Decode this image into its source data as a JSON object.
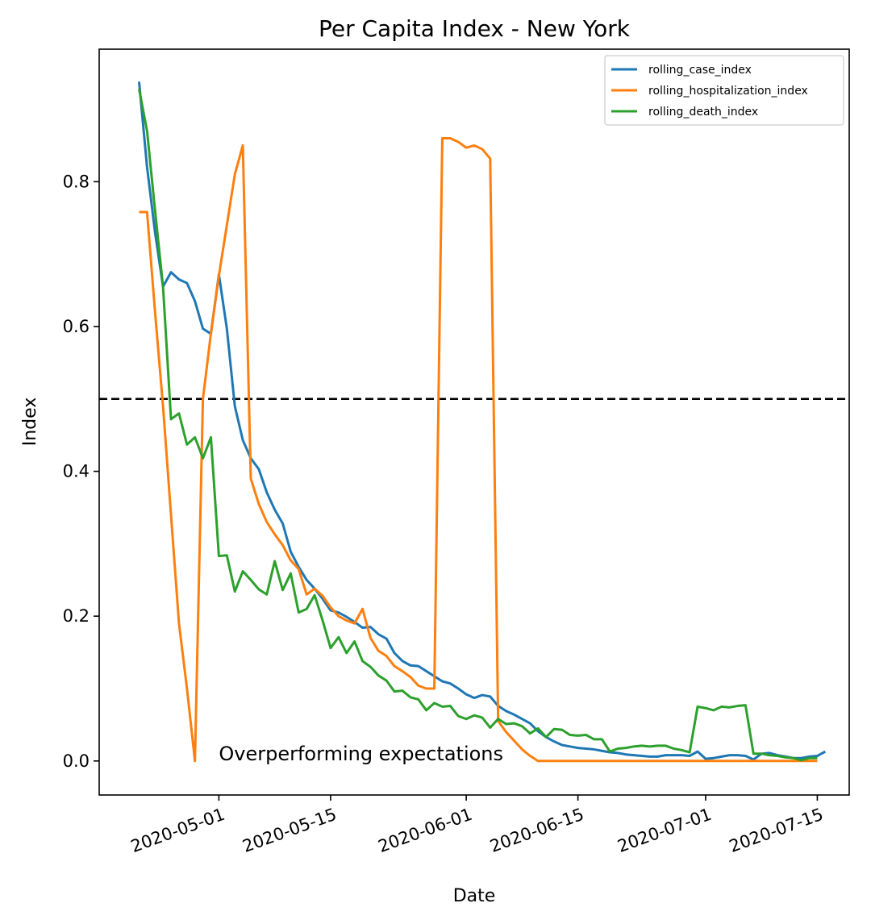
{
  "chart_data": {
    "type": "line",
    "title": "Per Capita Index - New York",
    "xlabel": "Date",
    "ylabel": "Index",
    "x_start_date": "2020-04-21",
    "xlim": [
      "2020-04-16",
      "2020-07-19"
    ],
    "ylim": [
      -0.047,
      0.983
    ],
    "x_ticks": [
      "2020-05-01",
      "2020-05-15",
      "2020-06-01",
      "2020-06-15",
      "2020-07-01",
      "2020-07-15"
    ],
    "y_ticks": [
      "0.0",
      "0.2",
      "0.4",
      "0.6",
      "0.8"
    ],
    "y_tick_values": [
      0.0,
      0.2,
      0.4,
      0.6,
      0.8
    ],
    "grid": false,
    "legend_position": "top-right",
    "reference_line": {
      "y": 0.5,
      "style": "dashed",
      "color": "#000000"
    },
    "annotation": {
      "text": "Overperforming expectations",
      "x": "2020-05-01",
      "y": 0.01
    },
    "series": [
      {
        "name": "rolling_case_index",
        "color": "#1f77b4",
        "values": [
          0.938,
          0.82,
          0.73,
          0.655,
          0.675,
          0.665,
          0.66,
          0.635,
          0.597,
          0.59,
          0.672,
          0.597,
          0.49,
          0.443,
          0.418,
          0.403,
          0.371,
          0.347,
          0.328,
          0.289,
          0.268,
          0.25,
          0.238,
          0.224,
          0.208,
          0.205,
          0.199,
          0.192,
          0.184,
          0.185,
          0.175,
          0.169,
          0.149,
          0.138,
          0.132,
          0.131,
          0.124,
          0.117,
          0.11,
          0.107,
          0.1,
          0.092,
          0.087,
          0.091,
          0.089,
          0.076,
          0.069,
          0.064,
          0.058,
          0.052,
          0.041,
          0.033,
          0.027,
          0.022,
          0.02,
          0.018,
          0.017,
          0.016,
          0.014,
          0.012,
          0.011,
          0.009,
          0.008,
          0.007,
          0.006,
          0.006,
          0.008,
          0.008,
          0.008,
          0.007,
          0.013,
          0.003,
          0.004,
          0.006,
          0.008,
          0.008,
          0.007,
          0.002,
          0.01,
          0.011,
          0.008,
          0.006,
          0.004,
          0.004,
          0.006,
          0.007,
          0.013
        ]
      },
      {
        "name": "rolling_hospitalization_index",
        "color": "#ff7f0e",
        "values": [
          0.758,
          0.758,
          0.62,
          0.49,
          0.34,
          0.19,
          0.1,
          0.0,
          0.5,
          0.59,
          0.67,
          0.74,
          0.81,
          0.85,
          0.39,
          0.355,
          0.33,
          0.313,
          0.298,
          0.277,
          0.265,
          0.23,
          0.238,
          0.228,
          0.212,
          0.2,
          0.194,
          0.19,
          0.21,
          0.17,
          0.152,
          0.145,
          0.131,
          0.124,
          0.116,
          0.104,
          0.1,
          0.1,
          0.86,
          0.86,
          0.855,
          0.847,
          0.85,
          0.845,
          0.832,
          0.055,
          0.04,
          0.028,
          0.016,
          0.007,
          0.0,
          0.0,
          0.0,
          0.0,
          0.0,
          0.0,
          0.0,
          0.0,
          0.0,
          0.0,
          0.0,
          0.0,
          0.0,
          0.0,
          0.0,
          0.0,
          0.0,
          0.0,
          0.0,
          0.0,
          0.0,
          0.0,
          0.0,
          0.0,
          0.0,
          0.0,
          0.0,
          0.0,
          0.0,
          0.0,
          0.0,
          0.0,
          0.0,
          0.0,
          0.0,
          0.0
        ]
      },
      {
        "name": "rolling_death_index",
        "color": "#2ca02c",
        "values": [
          0.928,
          0.87,
          0.76,
          0.655,
          0.472,
          0.48,
          0.437,
          0.447,
          0.418,
          0.447,
          0.283,
          0.284,
          0.234,
          0.262,
          0.25,
          0.237,
          0.23,
          0.276,
          0.236,
          0.259,
          0.205,
          0.21,
          0.229,
          0.194,
          0.156,
          0.171,
          0.149,
          0.165,
          0.138,
          0.13,
          0.118,
          0.111,
          0.096,
          0.097,
          0.088,
          0.085,
          0.07,
          0.08,
          0.075,
          0.076,
          0.062,
          0.058,
          0.063,
          0.06,
          0.046,
          0.058,
          0.051,
          0.052,
          0.048,
          0.038,
          0.045,
          0.033,
          0.044,
          0.043,
          0.036,
          0.035,
          0.036,
          0.03,
          0.03,
          0.013,
          0.017,
          0.018,
          0.02,
          0.021,
          0.02,
          0.021,
          0.021,
          0.017,
          0.015,
          0.012,
          0.075,
          0.073,
          0.07,
          0.075,
          0.074,
          0.076,
          0.077,
          0.01,
          0.01,
          0.008,
          0.007,
          0.005,
          0.004,
          0.001,
          0.004,
          0.004
        ]
      }
    ]
  }
}
